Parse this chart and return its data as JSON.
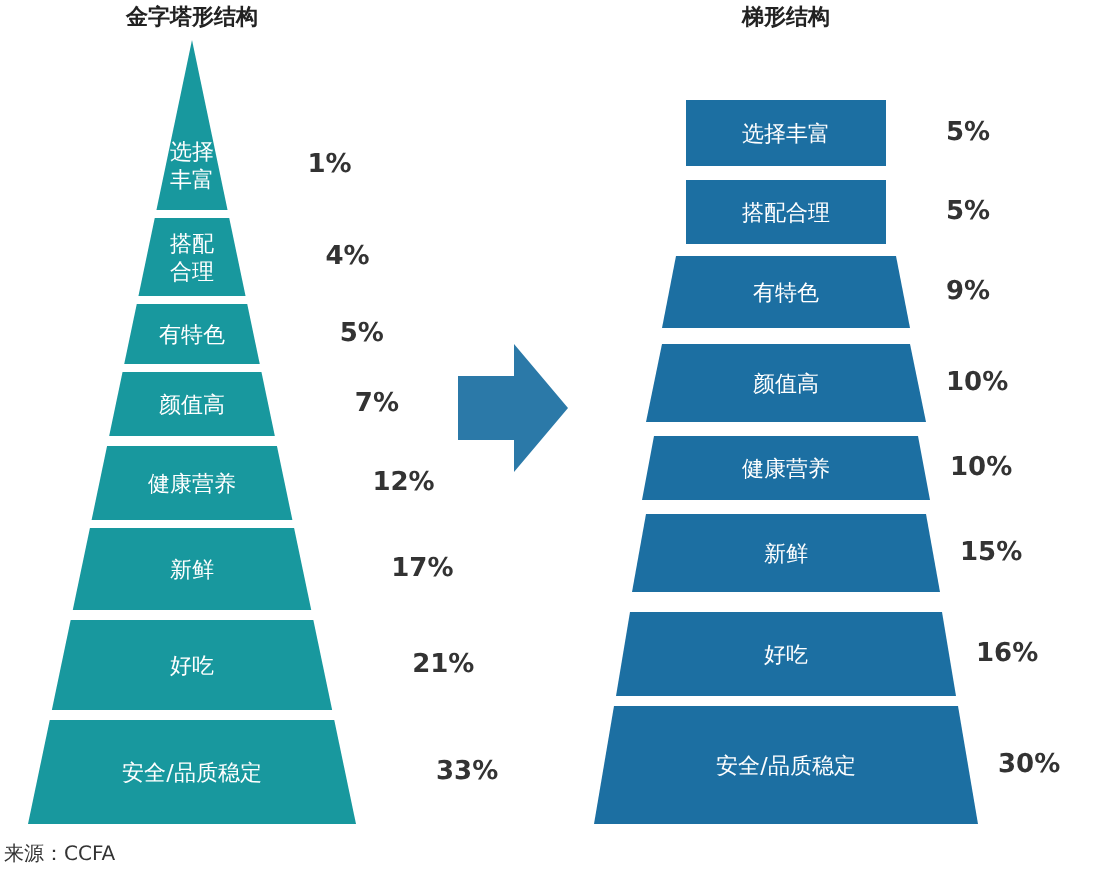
{
  "chart_data": [
    {
      "type": "other",
      "title": "金字塔形结构",
      "categories": [
        "选择丰富",
        "搭配合理",
        "有特色",
        "颜值高",
        "健康营养",
        "新鲜",
        "好吃",
        "安全/品质稳定"
      ],
      "values": [
        1,
        4,
        5,
        7,
        12,
        17,
        21,
        33
      ],
      "value_labels": [
        "1%",
        "4%",
        "5%",
        "7%",
        "12%",
        "17%",
        "21%",
        "33%"
      ],
      "color": "#18989e",
      "annotations": [
        "来源：CCFA"
      ]
    },
    {
      "type": "other",
      "title": "梯形结构",
      "categories": [
        "选择丰富",
        "搭配合理",
        "有特色",
        "颜值高",
        "健康营养",
        "新鲜",
        "好吃",
        "安全/品质稳定"
      ],
      "values": [
        5,
        5,
        9,
        10,
        10,
        15,
        16,
        30
      ],
      "value_labels": [
        "5%",
        "5%",
        "9%",
        "10%",
        "10%",
        "15%",
        "16%",
        "30%"
      ],
      "color": "#1c6fa2"
    }
  ]
}
